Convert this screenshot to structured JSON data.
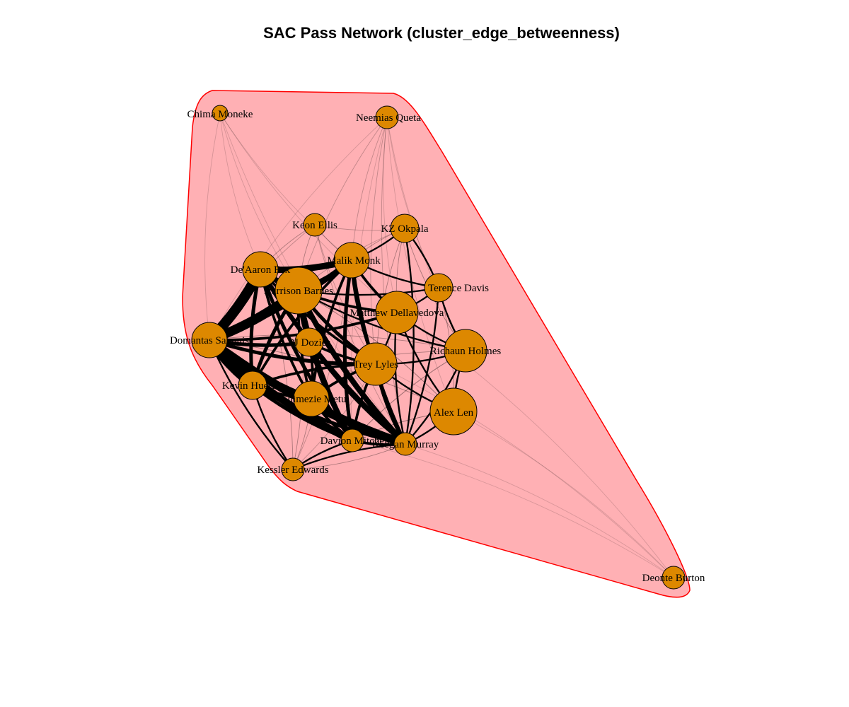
{
  "title": "SAC Pass Network (cluster_edge_betweenness)",
  "colors": {
    "node_fill": "#dd8800",
    "node_stroke": "#000000",
    "cluster_fill": "#ffb0b4",
    "cluster_stroke": "#ff0000",
    "edge_color": "#000000"
  },
  "clusters": [
    {
      "id": 1,
      "members": [
        "Chima Moneke",
        "Neemias Queta",
        "Keon Ellis",
        "KZ Okpala",
        "Malik Monk",
        "De'Aaron Fox",
        "Harrison Barnes",
        "Terence Davis",
        "Matthew Dellavedova",
        "Domantas Sabonis",
        "PJ Dozier",
        "Richaun Holmes",
        "Trey Lyles",
        "Kevin Huerter",
        "Chimezie Metu",
        "Alex Len",
        "Davion Mitchell",
        "Keegan Murray",
        "Kessler Edwards",
        "Deonte Burton"
      ]
    }
  ],
  "nodes": [
    {
      "id": "chima",
      "label": "Chima Moneke",
      "size": 1
    },
    {
      "id": "neemias",
      "label": "Neemias Queta",
      "size": 2
    },
    {
      "id": "keon",
      "label": "Keon Ellis",
      "size": 2
    },
    {
      "id": "kz",
      "label": "KZ Okpala",
      "size": 3
    },
    {
      "id": "malik",
      "label": "Malik Monk",
      "size": 4
    },
    {
      "id": "deaaron",
      "label": "De'Aaron Fox",
      "size": 4
    },
    {
      "id": "harrison",
      "label": "Harrison Barnes",
      "size": 6
    },
    {
      "id": "terence",
      "label": "Terence Davis",
      "size": 3
    },
    {
      "id": "matthew",
      "label": "Matthew Dellavedova",
      "size": 5
    },
    {
      "id": "domantas",
      "label": "Domantas Sabonis",
      "size": 4
    },
    {
      "id": "pj",
      "label": "PJ Dozier",
      "size": 3
    },
    {
      "id": "richaun",
      "label": "Richaun Holmes",
      "size": 5
    },
    {
      "id": "trey",
      "label": "Trey Lyles",
      "size": 5
    },
    {
      "id": "kevin",
      "label": "Kevin Huerter",
      "size": 3
    },
    {
      "id": "chimezie",
      "label": "Chimezie Metu",
      "size": 4
    },
    {
      "id": "alex",
      "label": "Alex Len",
      "size": 6
    },
    {
      "id": "davion",
      "label": "Davion Mitchell",
      "size": 2
    },
    {
      "id": "keegan",
      "label": "Keegan Murray",
      "size": 2
    },
    {
      "id": "kessler",
      "label": "Kessler Edwards",
      "size": 2
    },
    {
      "id": "deonte",
      "label": "Deonte Burton",
      "size": 2
    }
  ],
  "edges": [
    [
      "domantas",
      "deaaron",
      10
    ],
    [
      "domantas",
      "harrison",
      9
    ],
    [
      "domantas",
      "kevin",
      8
    ],
    [
      "domantas",
      "davion",
      7
    ],
    [
      "domantas",
      "keegan",
      8
    ],
    [
      "domantas",
      "chimezie",
      5
    ],
    [
      "domantas",
      "malik",
      5
    ],
    [
      "domantas",
      "pj",
      3
    ],
    [
      "domantas",
      "trey",
      3
    ],
    [
      "domantas",
      "kessler",
      1
    ],
    [
      "domantas",
      "matthew",
      2
    ],
    [
      "deaaron",
      "harrison",
      5
    ],
    [
      "deaaron",
      "malik",
      6
    ],
    [
      "deaaron",
      "keegan",
      4
    ],
    [
      "deaaron",
      "davion",
      3
    ],
    [
      "deaaron",
      "kevin",
      3
    ],
    [
      "deaaron",
      "trey",
      2
    ],
    [
      "deaaron",
      "chimezie",
      2
    ],
    [
      "harrison",
      "keegan",
      5
    ],
    [
      "harrison",
      "malik",
      3
    ],
    [
      "harrison",
      "davion",
      4
    ],
    [
      "harrison",
      "kevin",
      3
    ],
    [
      "harrison",
      "trey",
      3
    ],
    [
      "harrison",
      "pj",
      3
    ],
    [
      "harrison",
      "chimezie",
      2
    ],
    [
      "harrison",
      "matthew",
      2
    ],
    [
      "harrison",
      "terence",
      1
    ],
    [
      "harrison",
      "richaun",
      1
    ],
    [
      "malik",
      "keegan",
      3
    ],
    [
      "malik",
      "davion",
      3
    ],
    [
      "malik",
      "trey",
      3
    ],
    [
      "malik",
      "chimezie",
      2
    ],
    [
      "malik",
      "matthew",
      2
    ],
    [
      "malik",
      "terence",
      1
    ],
    [
      "malik",
      "kevin",
      2
    ],
    [
      "malik",
      "kz",
      1
    ],
    [
      "trey",
      "keegan",
      3
    ],
    [
      "trey",
      "davion",
      2
    ],
    [
      "trey",
      "chimezie",
      2
    ],
    [
      "trey",
      "kevin",
      2
    ],
    [
      "trey",
      "matthew",
      1
    ],
    [
      "trey",
      "richaun",
      1
    ],
    [
      "trey",
      "alex",
      1
    ],
    [
      "kevin",
      "keegan",
      3
    ],
    [
      "kevin",
      "davion",
      3
    ],
    [
      "kevin",
      "chimezie",
      2
    ],
    [
      "kevin",
      "kessler",
      1
    ],
    [
      "chimezie",
      "keegan",
      3
    ],
    [
      "chimezie",
      "davion",
      2
    ],
    [
      "chimezie",
      "pj",
      2
    ],
    [
      "pj",
      "keegan",
      2
    ],
    [
      "pj",
      "davion",
      2
    ],
    [
      "pj",
      "trey",
      2
    ],
    [
      "davion",
      "keegan",
      2
    ],
    [
      "davion",
      "kessler",
      1
    ],
    [
      "matthew",
      "keegan",
      1
    ],
    [
      "matthew",
      "alex",
      1
    ],
    [
      "matthew",
      "richaun",
      1
    ],
    [
      "matthew",
      "terence",
      1
    ],
    [
      "keegan",
      "alex",
      1
    ],
    [
      "keegan",
      "richaun",
      1
    ],
    [
      "keegan",
      "terence",
      1
    ],
    [
      "keegan",
      "kz",
      1
    ],
    [
      "keegan",
      "kessler",
      1
    ],
    [
      "terence",
      "richaun",
      1
    ],
    [
      "terence",
      "kz",
      1
    ],
    [
      "richaun",
      "alex",
      1
    ],
    [
      "neemias",
      "malik",
      0.3
    ],
    [
      "neemias",
      "trey",
      0.3
    ],
    [
      "neemias",
      "keegan",
      0.3
    ],
    [
      "neemias",
      "harrison",
      0.3
    ],
    [
      "neemias",
      "domantas",
      0.2
    ],
    [
      "neemias",
      "richaun",
      0.2
    ],
    [
      "neemias",
      "alex",
      0.2
    ],
    [
      "neemias",
      "davion",
      0.2
    ],
    [
      "neemias",
      "terence",
      0.2
    ],
    [
      "neemias",
      "matthew",
      0.2
    ],
    [
      "chima",
      "deaaron",
      0.2
    ],
    [
      "chima",
      "harrison",
      0.2
    ],
    [
      "chima",
      "malik",
      0.2
    ],
    [
      "chima",
      "matthew",
      0.2
    ],
    [
      "chima",
      "keegan",
      0.2
    ],
    [
      "chima",
      "domantas",
      0.2
    ],
    [
      "keon",
      "deaaron",
      0.4
    ],
    [
      "keon",
      "harrison",
      0.4
    ],
    [
      "keon",
      "malik",
      0.4
    ],
    [
      "keon",
      "domantas",
      0.3
    ],
    [
      "keon",
      "trey",
      0.3
    ],
    [
      "keon",
      "keegan",
      0.3
    ],
    [
      "keon",
      "kz",
      0.3
    ],
    [
      "kz",
      "malik",
      0.4
    ],
    [
      "kz",
      "trey",
      0.4
    ],
    [
      "kz",
      "matthew",
      0.4
    ],
    [
      "kz",
      "richaun",
      0.4
    ],
    [
      "kz",
      "harrison",
      0.3
    ],
    [
      "kessler",
      "keegan",
      0.4
    ],
    [
      "kessler",
      "trey",
      0.3
    ],
    [
      "kessler",
      "harrison",
      0.4
    ],
    [
      "kessler",
      "deaaron",
      0.4
    ],
    [
      "kessler",
      "malik",
      0.3
    ],
    [
      "kessler",
      "chimezie",
      0.4
    ],
    [
      "alex",
      "harrison",
      0.5
    ],
    [
      "alex",
      "davion",
      0.5
    ],
    [
      "alex",
      "terence",
      0.4
    ],
    [
      "alex",
      "domantas",
      0.4
    ],
    [
      "richaun",
      "davion",
      0.5
    ],
    [
      "richaun",
      "domantas",
      0.4
    ],
    [
      "richaun",
      "kevin",
      0.4
    ],
    [
      "deonte",
      "keegan",
      0.1
    ],
    [
      "deonte",
      "trey",
      0.1
    ],
    [
      "deonte",
      "alex",
      0.1
    ],
    [
      "deonte",
      "davion",
      0.1
    ],
    [
      "deonte",
      "matthew",
      0.1
    ]
  ]
}
